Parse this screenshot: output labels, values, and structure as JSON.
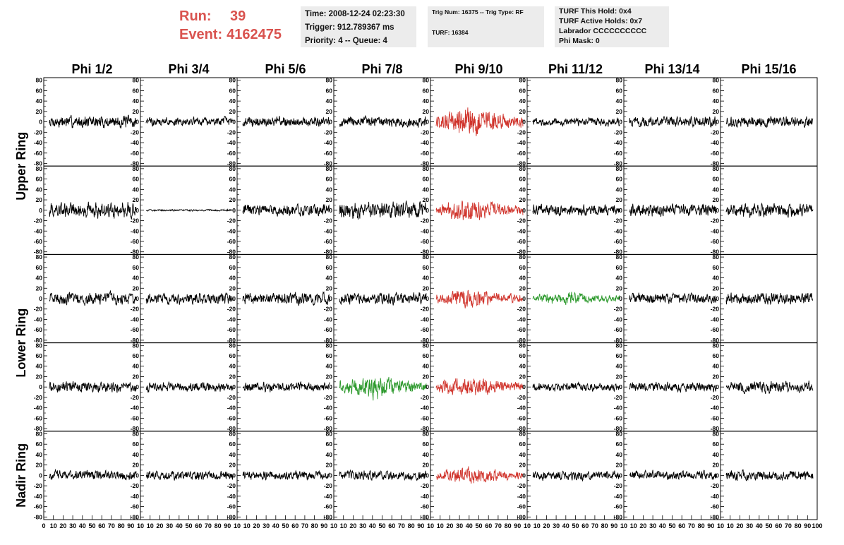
{
  "header": {
    "run_label": "Run:",
    "run_value": "39",
    "event_label": "Event:",
    "event_value": "4162475"
  },
  "info_box_1": {
    "time": "Time: 2008-12-24 02:23:30",
    "trigger": "Trigger: 912.789367 ms",
    "priority": "Priority: 4 -- Queue: 4"
  },
  "info_box_2": {
    "trig": "Trig Num: 16375 -- Trig Type: RF",
    "turf": "TURF: 16384"
  },
  "info_box_3": {
    "this_hold": "TURF This Hold: 0x4",
    "active_holds": "TURF Active Holds: 0x7",
    "labrador": "Labrador CCCCCCCCCC",
    "phi_mask": "Phi Mask: 0"
  },
  "chart_data": {
    "type": "line",
    "columns": [
      "Phi 1/2",
      "Phi 3/4",
      "Phi 5/6",
      "Phi 7/8",
      "Phi 9/10",
      "Phi 11/12",
      "Phi 13/14",
      "Phi 15/16"
    ],
    "ring_labels": [
      "Upper Ring",
      "Lower Ring",
      "Nadir Ring"
    ],
    "rows": 5,
    "ylim": [
      -85,
      85
    ],
    "xlim": [
      0,
      100
    ],
    "y_ticks": [
      80,
      60,
      40,
      20,
      0,
      -20,
      -40,
      -60,
      -80
    ],
    "x_tick_labels": [
      "0",
      "10",
      "20",
      "30",
      "40",
      "50",
      "60",
      "70",
      "80",
      "90",
      "10",
      "10",
      "20",
      "30",
      "40",
      "50",
      "60",
      "70",
      "80",
      "90",
      "10",
      "10",
      "20",
      "30",
      "40",
      "50",
      "60",
      "70",
      "80",
      "90",
      "10",
      "10",
      "20",
      "30",
      "40",
      "50",
      "60",
      "70",
      "80",
      "90",
      "10",
      "10",
      "20",
      "30",
      "40",
      "50",
      "60",
      "70",
      "80",
      "90",
      "10",
      "10",
      "20",
      "30",
      "40",
      "50",
      "60",
      "70",
      "80",
      "90",
      "10",
      "10",
      "20",
      "30",
      "40",
      "50",
      "60",
      "70",
      "80",
      "90",
      "10",
      "10",
      "20",
      "30",
      "40",
      "50",
      "60",
      "70",
      "80",
      "90",
      "100"
    ],
    "colors": {
      "normal": "#000000",
      "red": "#d0342c",
      "green": "#2e9a2e"
    },
    "panel_colors": [
      [
        "normal",
        "normal",
        "normal",
        "normal",
        "red",
        "normal",
        "normal",
        "normal"
      ],
      [
        "normal",
        "normal",
        "normal",
        "normal",
        "red",
        "normal",
        "normal",
        "normal"
      ],
      [
        "normal",
        "normal",
        "normal",
        "normal",
        "red",
        "green",
        "normal",
        "normal"
      ],
      [
        "normal",
        "normal",
        "normal",
        "green",
        "red",
        "normal",
        "normal",
        "normal"
      ],
      [
        "normal",
        "normal",
        "normal",
        "normal",
        "red",
        "normal",
        "normal",
        "normal"
      ]
    ],
    "panel_amplitudes": [
      [
        14,
        10,
        11,
        12,
        24,
        9,
        11,
        12
      ],
      [
        18,
        2,
        13,
        19,
        18,
        12,
        14,
        16
      ],
      [
        14,
        12,
        13,
        13,
        16,
        11,
        12,
        13
      ],
      [
        12,
        10,
        11,
        19,
        17,
        9,
        11,
        13
      ],
      [
        11,
        10,
        10,
        11,
        14,
        10,
        10,
        11
      ]
    ]
  }
}
